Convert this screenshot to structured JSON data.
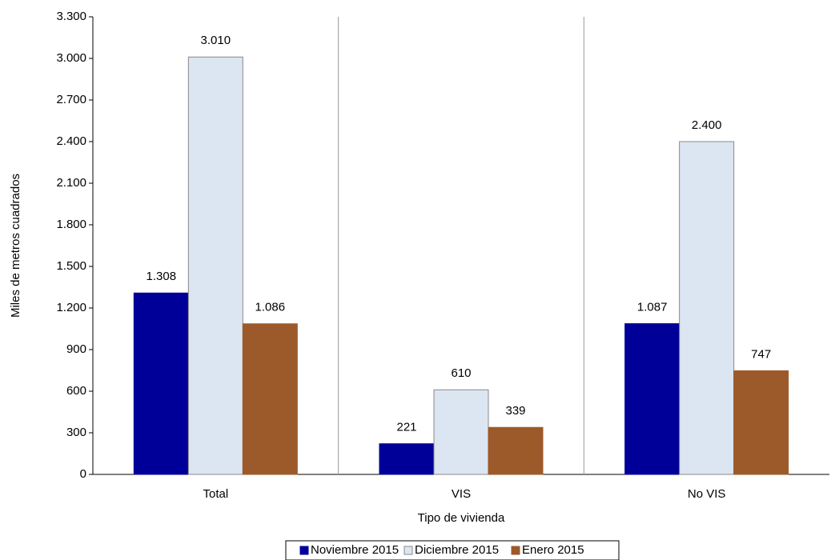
{
  "chart_data": {
    "type": "bar",
    "x_label": "Tipo de vivienda",
    "y_label": "Miles de metros cuadrados",
    "categories": [
      "Total",
      "VIS",
      "No VIS"
    ],
    "series": [
      {
        "name": "Noviembre 2015",
        "color": "#000099",
        "values": [
          1308,
          221,
          1087
        ],
        "value_labels": [
          "1.308",
          "221",
          "1.087"
        ]
      },
      {
        "name": "Diciembre 2015",
        "color": "#dce6f2",
        "values": [
          3010,
          610,
          2400
        ],
        "value_labels": [
          "3.010",
          "610",
          "2.400"
        ]
      },
      {
        "name": "Enero 2015",
        "color": "#9c5a2a",
        "values": [
          1086,
          339,
          747
        ],
        "value_labels": [
          "1.086",
          "339",
          "747"
        ]
      }
    ],
    "ylim": [
      0,
      3300
    ],
    "yticks": [
      0,
      300,
      600,
      900,
      {
        "value": 1200,
        "label": "1.200"
      },
      {
        "value": 1500,
        "label": "1.500"
      },
      {
        "value": 1800,
        "label": "1.800"
      },
      {
        "value": 2100,
        "label": "2.100"
      },
      {
        "value": 2400,
        "label": "2.400"
      },
      {
        "value": 2700,
        "label": "2.700"
      },
      {
        "value": 3000,
        "label": "3.000"
      },
      {
        "value": 3300,
        "label": "3.300"
      }
    ],
    "legend": "bottom"
  }
}
